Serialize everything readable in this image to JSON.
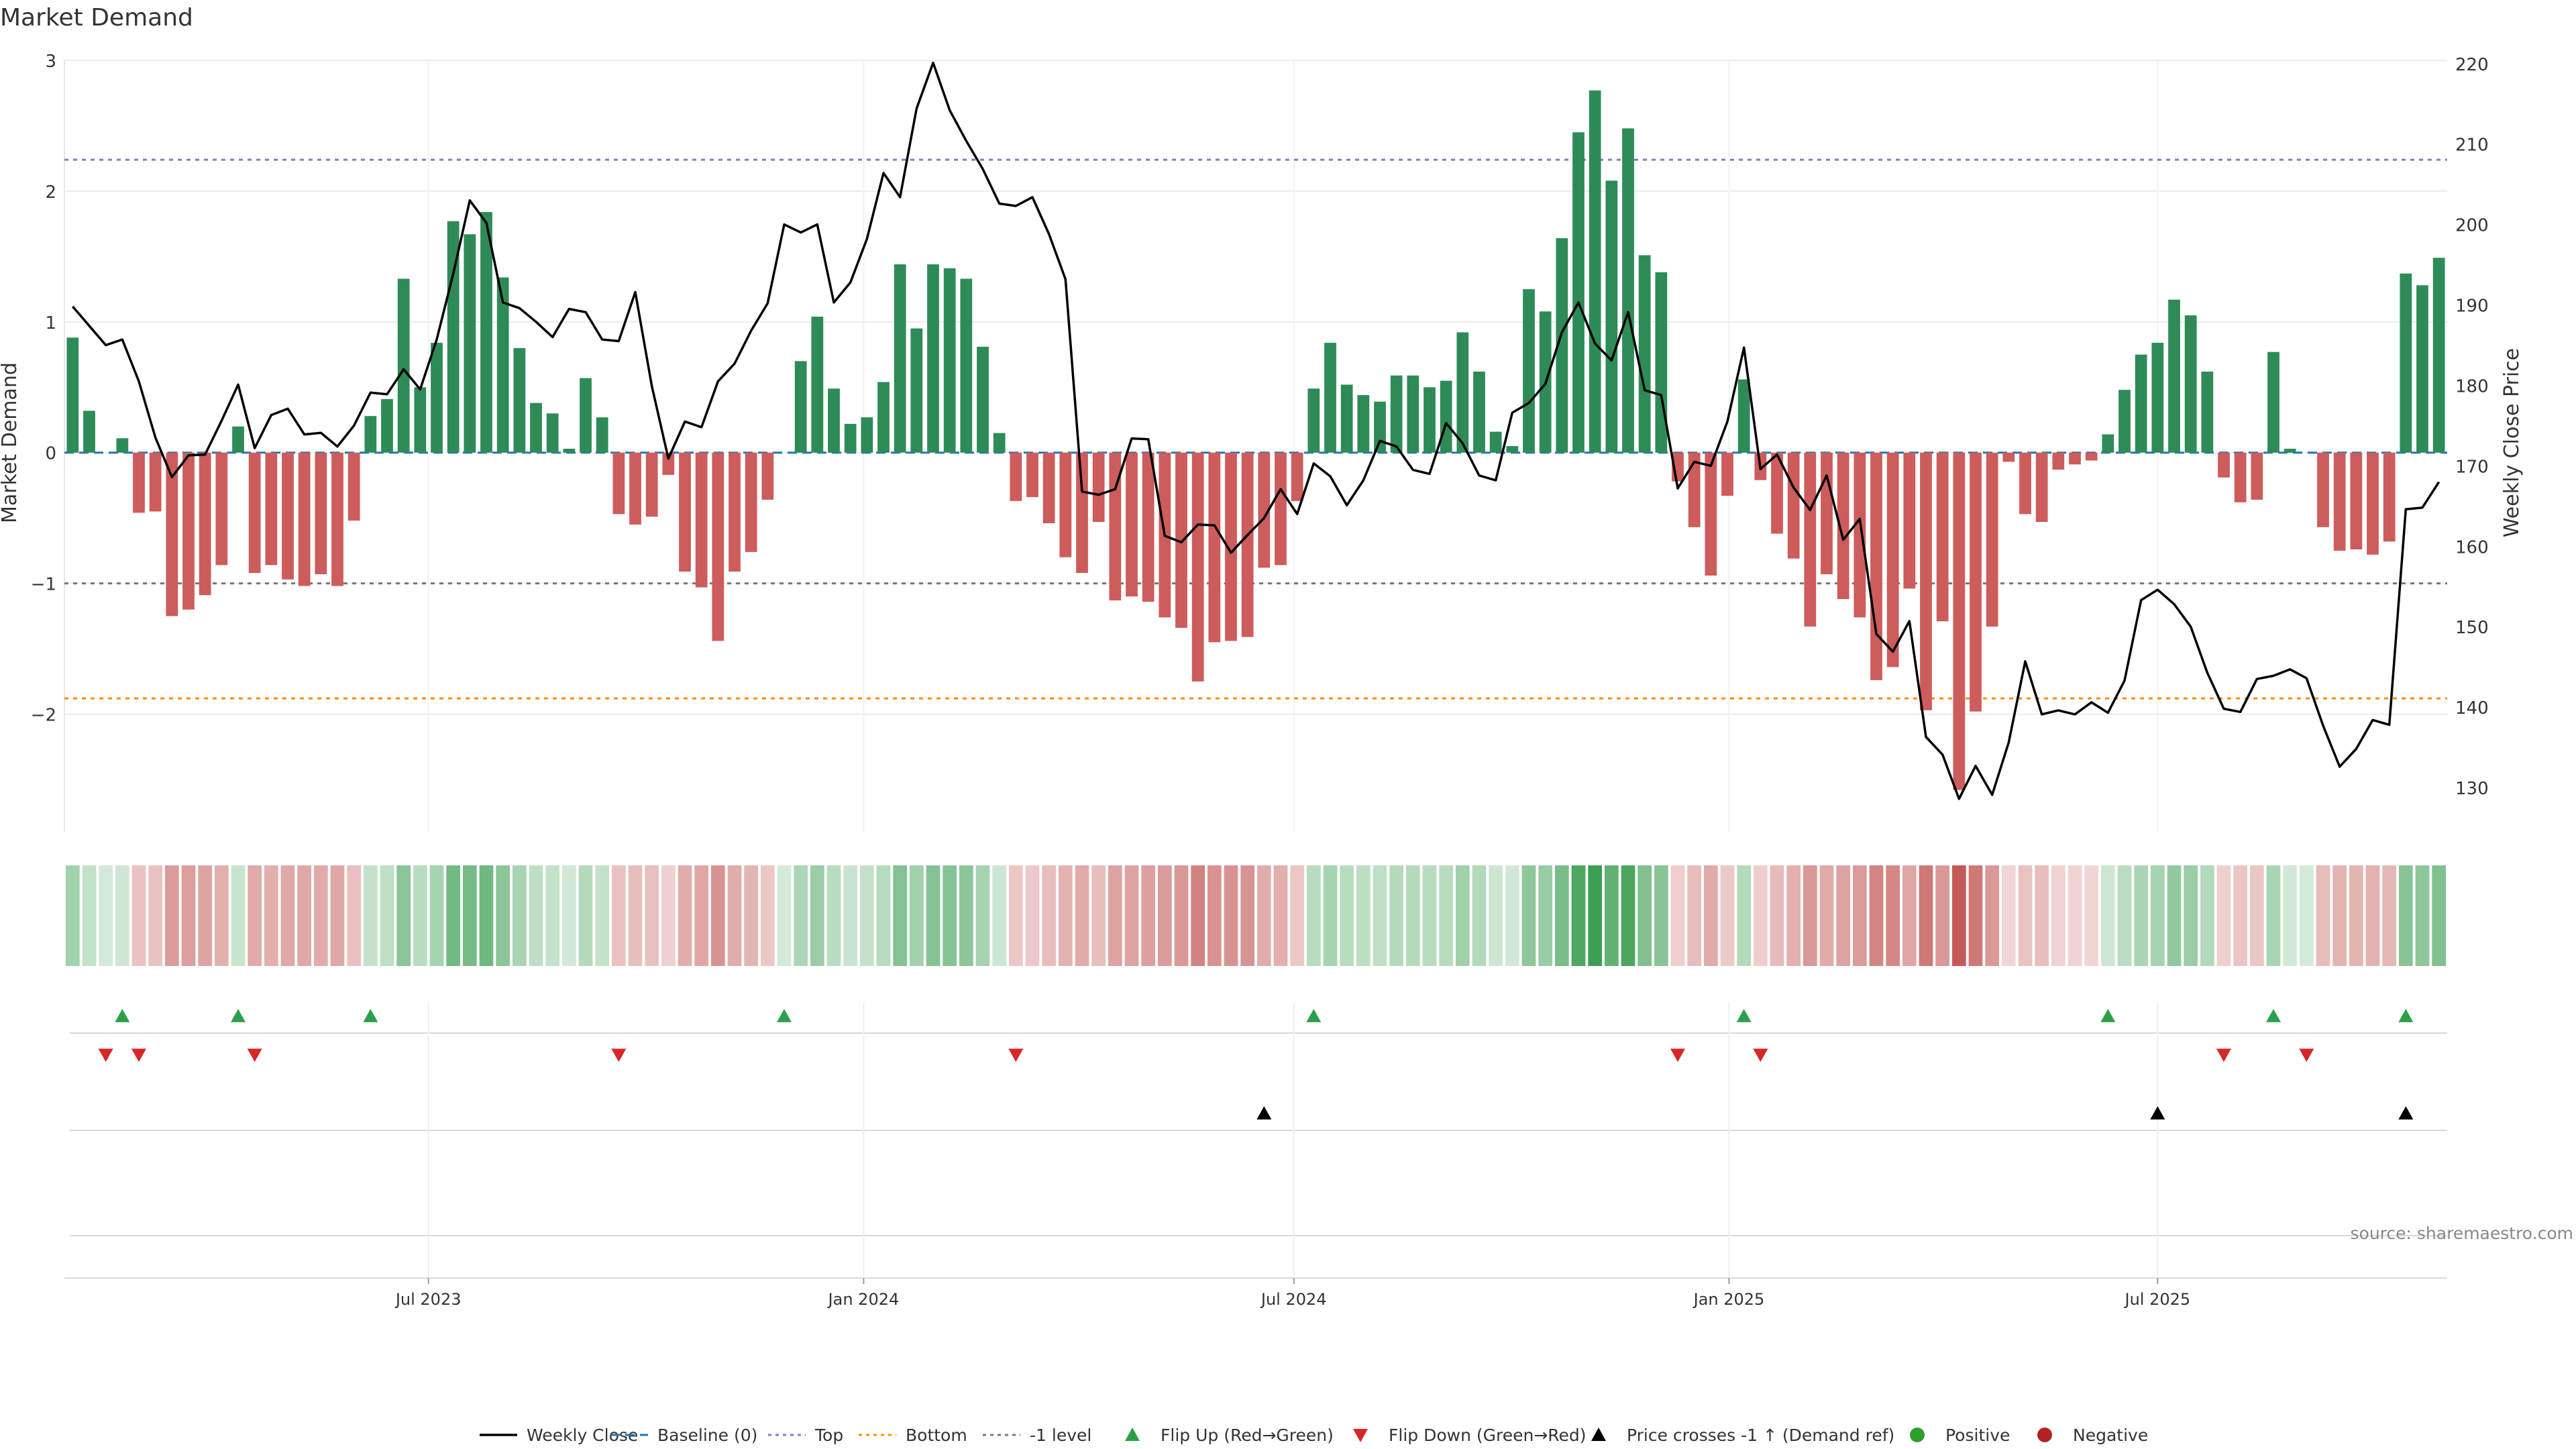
{
  "chart_data": {
    "type": "bar",
    "title": "Market Demand",
    "ylabel": "Market Demand",
    "y2label": "Weekly Close Price",
    "ylim": [
      -2.9,
      3.0
    ],
    "y2lim": [
      124.5,
      220.4
    ],
    "yticks": [
      {
        "v": 3,
        "label": "3"
      },
      {
        "v": 2,
        "label": "2"
      },
      {
        "v": 1,
        "label": "1"
      },
      {
        "v": 0,
        "label": "0"
      },
      {
        "v": -1,
        "label": "−1"
      },
      {
        "v": -2,
        "label": "−2"
      }
    ],
    "y2ticks": [
      {
        "v": 220,
        "label": "220"
      },
      {
        "v": 210,
        "label": "210"
      },
      {
        "v": 200,
        "label": "200"
      },
      {
        "v": 190,
        "label": "190"
      },
      {
        "v": 180,
        "label": "180"
      },
      {
        "v": 170,
        "label": "170"
      },
      {
        "v": 160,
        "label": "160"
      },
      {
        "v": 150,
        "label": "150"
      },
      {
        "v": 140,
        "label": "140"
      },
      {
        "v": 130,
        "label": "130"
      }
    ],
    "xticks": [
      {
        "i": 21.5,
        "label": "Jul 2023"
      },
      {
        "i": 47.8,
        "label": "Jan 2024"
      },
      {
        "i": 73.8,
        "label": "Jul 2024"
      },
      {
        "i": 100.1,
        "label": "Jan 2025"
      },
      {
        "i": 126.0,
        "label": "Jul 2025"
      }
    ],
    "reference_levels": {
      "top": 2.24,
      "bottom": -1.88,
      "minus_one": -1.0,
      "baseline": 0
    },
    "demand": [
      0.88,
      0.32,
      0.0,
      0.11,
      -0.46,
      -0.45,
      -1.25,
      -1.2,
      -1.09,
      -0.86,
      0.2,
      -0.92,
      -0.86,
      -0.97,
      -1.02,
      -0.93,
      -1.02,
      -0.52,
      0.28,
      0.41,
      1.33,
      0.5,
      0.84,
      1.77,
      1.67,
      1.84,
      1.34,
      0.8,
      0.38,
      0.3,
      0.03,
      0.57,
      0.27,
      -0.47,
      -0.55,
      -0.49,
      -0.17,
      -0.91,
      -1.03,
      -1.44,
      -0.91,
      -0.76,
      -0.36,
      0.0,
      0.7,
      1.04,
      0.49,
      0.22,
      0.27,
      0.54,
      1.44,
      0.95,
      1.44,
      1.41,
      1.33,
      0.81,
      0.15,
      -0.37,
      -0.34,
      -0.54,
      -0.8,
      -0.92,
      -0.53,
      -1.13,
      -1.1,
      -1.14,
      -1.26,
      -1.34,
      -1.75,
      -1.45,
      -1.44,
      -1.41,
      -0.88,
      -0.86,
      -0.37,
      0.49,
      0.84,
      0.52,
      0.44,
      0.39,
      0.59,
      0.59,
      0.5,
      0.55,
      0.92,
      0.62,
      0.16,
      0.05,
      1.25,
      1.08,
      1.64,
      2.45,
      2.77,
      2.08,
      2.48,
      1.51,
      1.38,
      -0.22,
      -0.57,
      -0.94,
      -0.33,
      0.56,
      -0.21,
      -0.62,
      -0.81,
      -1.33,
      -0.93,
      -1.12,
      -1.26,
      -1.74,
      -1.64,
      -1.04,
      -1.97,
      -1.29,
      -2.58,
      -1.98,
      -1.33,
      -0.07,
      -0.47,
      -0.53,
      -0.13,
      -0.09,
      -0.06,
      0.14,
      0.48,
      0.75,
      0.84,
      1.17,
      1.05,
      0.62,
      -0.19,
      -0.38,
      -0.36,
      0.77,
      0.03,
      0.0,
      -0.57,
      -0.75,
      -0.74,
      -0.78,
      -0.68,
      1.37,
      1.28,
      1.49
    ],
    "weekly_close": [
      189.8,
      187.4,
      185.0,
      185.7,
      180.5,
      173.5,
      168.6,
      171.3,
      171.4,
      175.6,
      180.1,
      172.2,
      176.3,
      177.1,
      173.9,
      174.1,
      172.4,
      175.0,
      179.1,
      178.9,
      182.0,
      179.5,
      185.7,
      193.9,
      203.0,
      200.2,
      190.3,
      189.6,
      187.9,
      186.0,
      189.5,
      189.1,
      185.7,
      185.5,
      191.6,
      179.9,
      170.9,
      175.5,
      174.8,
      180.5,
      182.7,
      186.8,
      190.2,
      200.0,
      199.0,
      200.0,
      190.3,
      192.8,
      198.2,
      206.4,
      203.4,
      214.4,
      220.1,
      214.2,
      210.4,
      206.9,
      202.6,
      202.3,
      203.4,
      198.8,
      193.2,
      166.8,
      166.4,
      167.1,
      173.4,
      173.3,
      161.3,
      160.5,
      162.7,
      162.6,
      159.2,
      161.4,
      163.5,
      167.1,
      164.0,
      170.3,
      168.7,
      165.1,
      168.2,
      173.1,
      172.4,
      169.5,
      169.0,
      175.3,
      172.8,
      168.8,
      168.2,
      176.6,
      177.8,
      180.2,
      186.6,
      190.3,
      185.2,
      183.1,
      189.1,
      179.4,
      178.8,
      167.2,
      170.5,
      170.0,
      175.5,
      184.7,
      169.6,
      171.4,
      167.3,
      164.5,
      168.8,
      160.8,
      163.4,
      149.1,
      146.9,
      150.7,
      136.3,
      134.1,
      128.6,
      132.7,
      129.1,
      135.6,
      145.7,
      139.1,
      139.6,
      139.1,
      140.6,
      139.3,
      143.3,
      153.3,
      154.6,
      152.8,
      150.0,
      144.3,
      139.8,
      139.4,
      143.5,
      143.9,
      144.7,
      143.6,
      137.7,
      132.6,
      134.8,
      138.4,
      137.8,
      164.6,
      164.8,
      168.0
    ],
    "flip_up_weeks": [
      3,
      10,
      18,
      43,
      75,
      101,
      123,
      133,
      141
    ],
    "flip_down_weeks": [
      2,
      4,
      11,
      33,
      57,
      97,
      102,
      130,
      135
    ],
    "price_cross_weeks": [
      72,
      126,
      141
    ],
    "legend": [
      {
        "label": "Weekly Close",
        "kind": "line",
        "color": "#000000"
      },
      {
        "label": "Baseline (0)",
        "kind": "dash",
        "color": "#1f77b4"
      },
      {
        "label": "Top",
        "kind": "dot",
        "color": "#7f7fbf"
      },
      {
        "label": "Bottom",
        "kind": "dot",
        "color": "#ff8c00"
      },
      {
        "label": "-1 level",
        "kind": "dot",
        "color": "#777777"
      },
      {
        "label": "Flip Up (Red→Green)",
        "kind": "tri-up",
        "color": "#2ca048"
      },
      {
        "label": "Flip Down (Green→Red)",
        "kind": "tri-down",
        "color": "#d62728"
      },
      {
        "label": "Price crosses -1 ↑ (Demand ref)",
        "kind": "tri-up",
        "color": "#000000"
      },
      {
        "label": "Positive",
        "kind": "dot-marker",
        "color": "#2ca02c"
      },
      {
        "label": "Negative",
        "kind": "dot-marker",
        "color": "#b22222"
      }
    ],
    "colors": {
      "positive": "#2e8b57",
      "negative": "#cd5c5c",
      "heat_pos": "#3a9d50",
      "heat_neg": "#c0504d"
    }
  },
  "source": "source: sharemaestro.com"
}
